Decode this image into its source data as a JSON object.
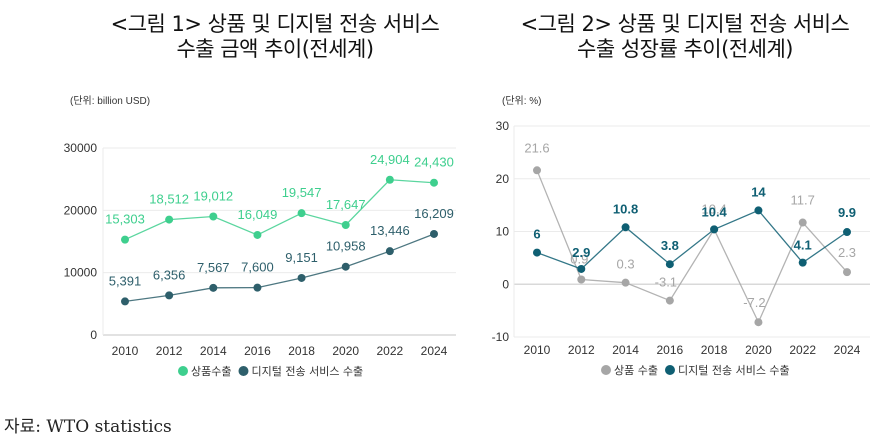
{
  "chart_data": [
    {
      "type": "line",
      "title": "<그림 1> 상품 및 디지털 전송 서비스 수출 금액 추이(전세계)",
      "title_lines": [
        "<그림 1> 상품 및 디지털 전송 서비스",
        "수출 금액 추이(전세계)"
      ],
      "unit_label": "(단위: billion USD)",
      "x": [
        "2010",
        "2012",
        "2014",
        "2016",
        "2018",
        "2020",
        "2022",
        "2024"
      ],
      "ylim": [
        0,
        30000
      ],
      "yticks": [
        "0",
        "10000",
        "20000",
        "30000"
      ],
      "ytick_values": [
        0,
        10000,
        20000,
        30000
      ],
      "grid": true,
      "legend_position": "bottom",
      "series": [
        {
          "name": "상품수출",
          "color": "#3ecf8e",
          "values": [
            15303,
            18512,
            19012,
            16049,
            19547,
            17647,
            24904,
            24430
          ],
          "labels": [
            "15,303",
            "18,512",
            "19,012",
            "16,049",
            "19,547",
            "17,647",
            "24,904",
            "24,430"
          ]
        },
        {
          "name": "디지털 전송 서비스 수출",
          "color": "#2e5f6b",
          "values": [
            5391,
            6356,
            7567,
            7600,
            9151,
            10958,
            13446,
            16209
          ],
          "labels": [
            "5,391",
            "6,356",
            "7,567",
            "7,600",
            "9,151",
            "10,958",
            "13,446",
            "16,209"
          ]
        }
      ]
    },
    {
      "type": "line",
      "title": "<그림 2> 상품 및 디지털 전송 서비스 수출 성장률 추이(전세계)",
      "title_lines": [
        "<그림 2> 상품 및 디지털 전송 서비스",
        "수출 성장률 추이(전세계)"
      ],
      "unit_label": "(단위: %)",
      "x": [
        "2010",
        "2012",
        "2014",
        "2016",
        "2018",
        "2020",
        "2022",
        "2024"
      ],
      "ylim": [
        -10,
        30
      ],
      "yticks": [
        "-10",
        "0",
        "10",
        "20",
        "30"
      ],
      "ytick_values": [
        -10,
        0,
        10,
        20,
        30
      ],
      "grid": true,
      "legend_position": "bottom",
      "series": [
        {
          "name": "상품 수출",
          "color": "#a6a6a6",
          "values": [
            21.6,
            0.9,
            0.3,
            -3.1,
            10.4,
            -7.2,
            11.7,
            2.3
          ],
          "labels": [
            "21.6",
            "0.9",
            "0.3",
            "-3.1",
            "10.4",
            "-7.2",
            "11.7",
            "2.3"
          ]
        },
        {
          "name": "디지털 전송 서비스 수출",
          "color": "#0f5f73",
          "values": [
            6,
            2.9,
            10.8,
            3.8,
            10.4,
            14,
            4.1,
            9.9
          ],
          "labels": [
            "6",
            "2.9",
            "10.8",
            "3.8",
            "10.4",
            "14",
            "4.1",
            "9.9"
          ]
        }
      ]
    }
  ],
  "source": "자료:  WTO  statistics"
}
